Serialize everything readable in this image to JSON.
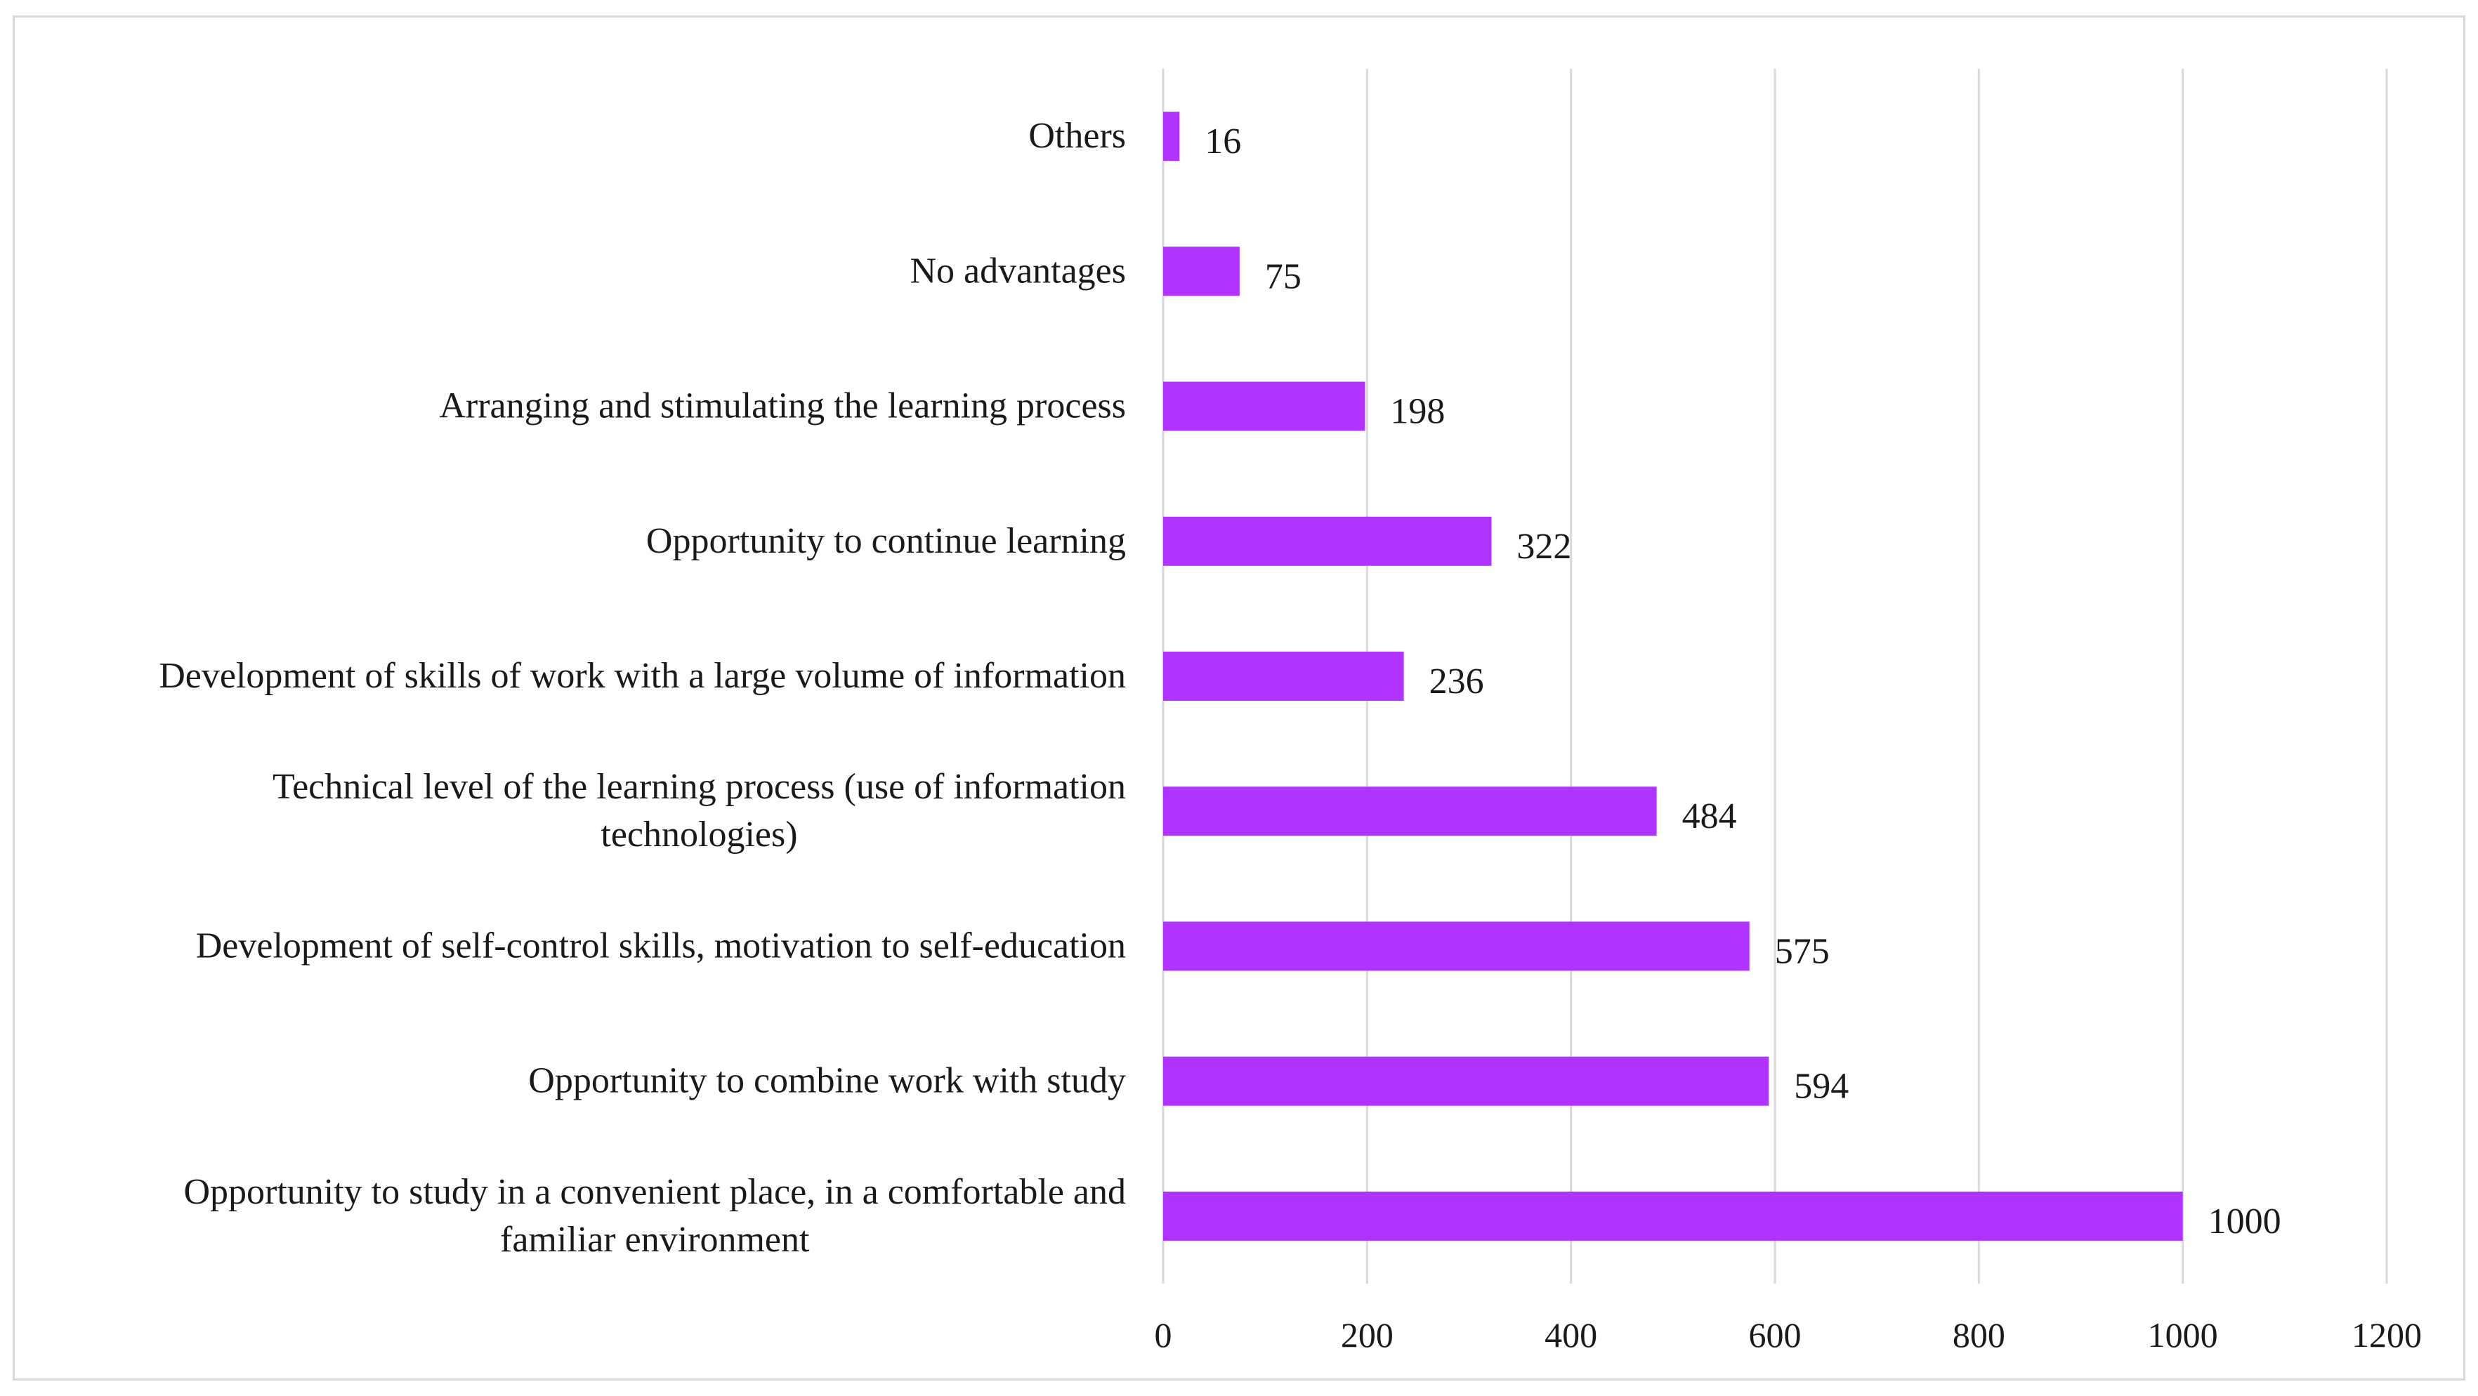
{
  "chart_data": {
    "type": "bar",
    "orientation": "horizontal",
    "title": "",
    "xlabel": "",
    "ylabel": "",
    "xlim": [
      0,
      1200
    ],
    "ticks": [
      "0",
      "200",
      "400",
      "600",
      "800",
      "1000",
      "1200"
    ],
    "tick_values": [
      0,
      200,
      400,
      600,
      800,
      1000,
      1200
    ],
    "grid": "vertical",
    "bar_color": "#b033ff",
    "gridline_color": "#d9d9d9",
    "categories": [
      [
        "Opportunity to study in a convenient place, in a comfortable and",
        "familiar environment"
      ],
      [
        "Opportunity to combine work with study"
      ],
      [
        "Development of self-control skills, motivation to self-education"
      ],
      [
        "Technical level of the learning process (use of information",
        "technologies)"
      ],
      [
        "Development of skills of work with a large volume of information"
      ],
      [
        "Opportunity to continue learning"
      ],
      [
        "Arranging and stimulating the learning process"
      ],
      [
        "No advantages"
      ],
      [
        "Others"
      ]
    ],
    "values": [
      1000,
      594,
      575,
      484,
      236,
      322,
      198,
      75,
      16
    ]
  }
}
